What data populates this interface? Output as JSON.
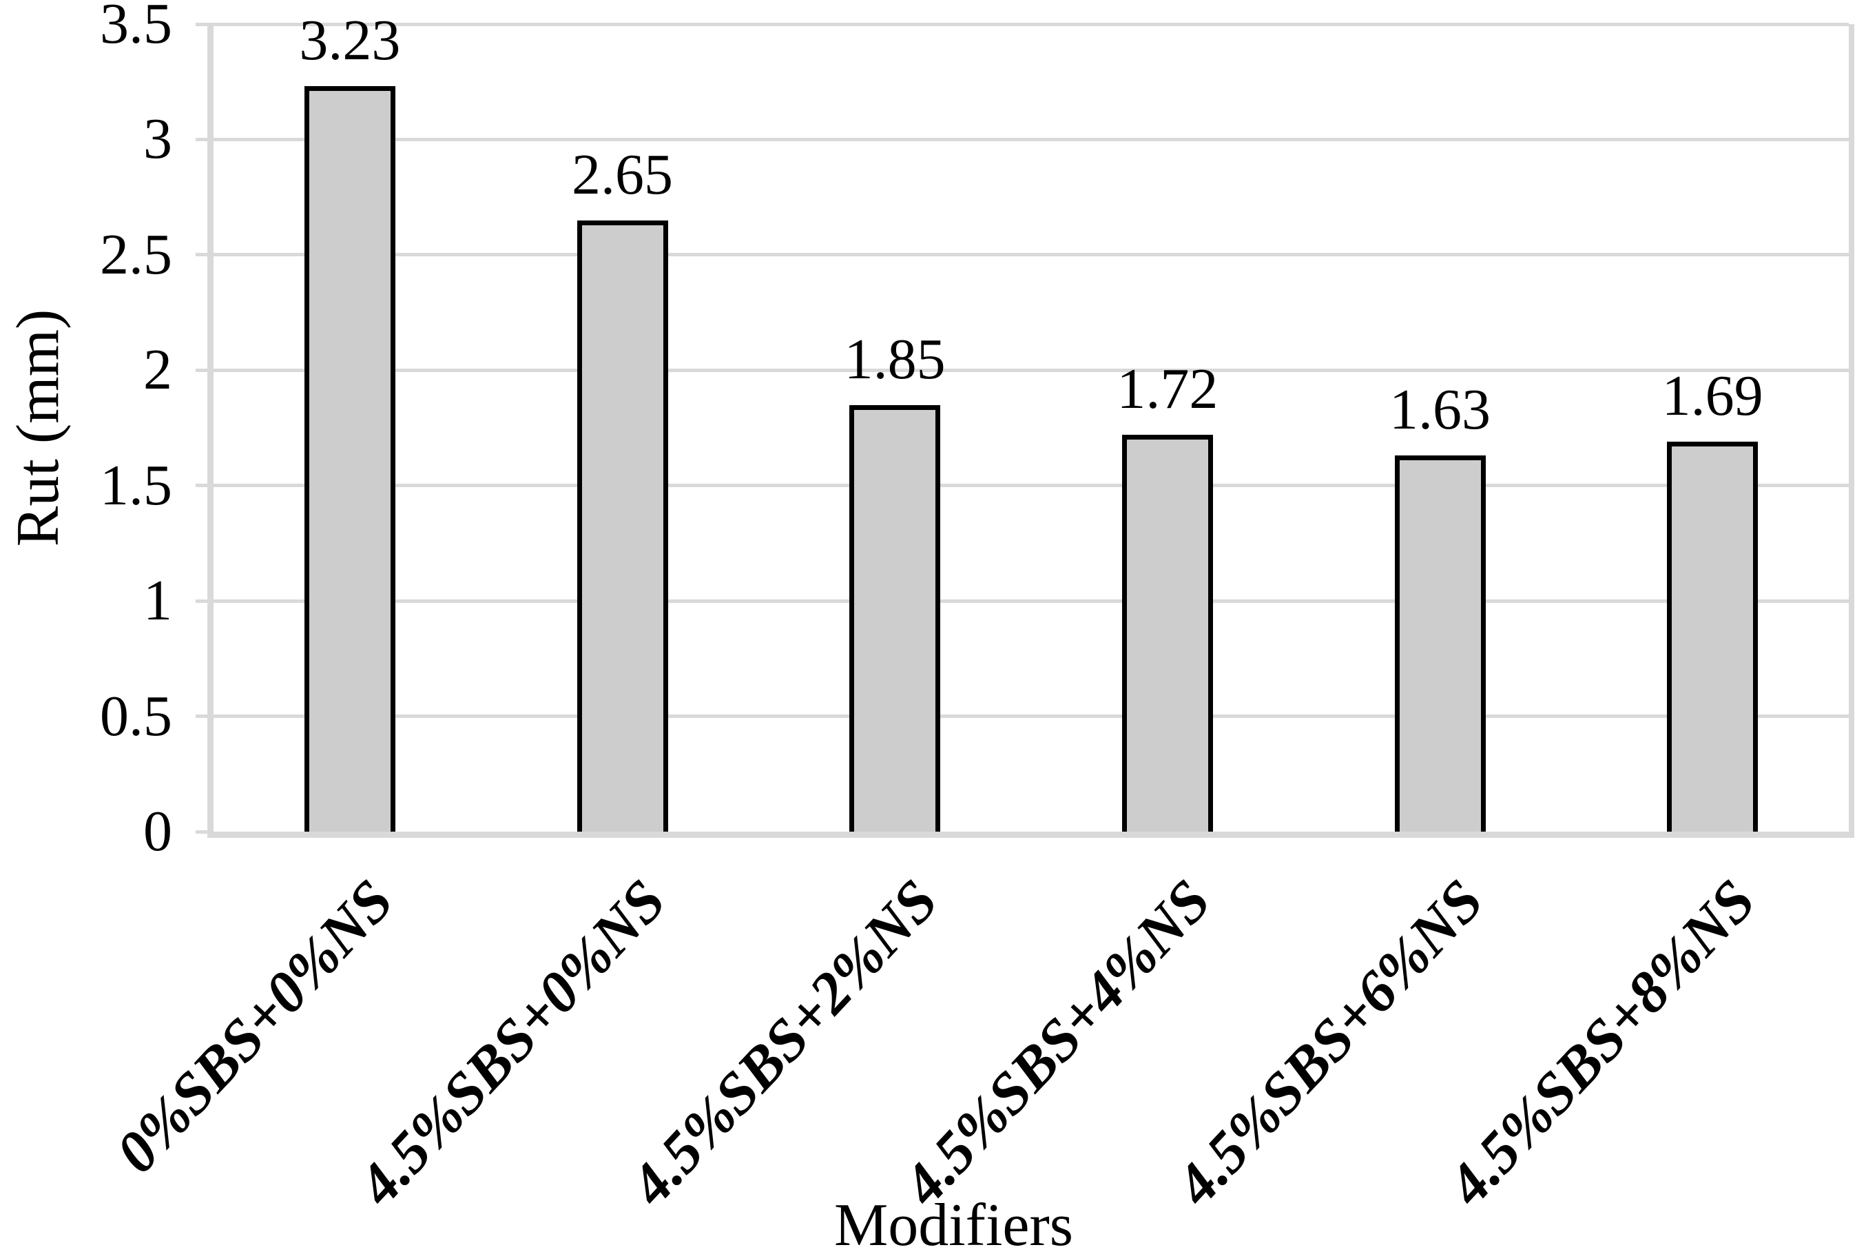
{
  "chart_data": {
    "type": "bar",
    "title": "",
    "xlabel": "Modifiers",
    "ylabel": "Rut (mm)",
    "categories": [
      "0%SBS+0%NS",
      "4.5%SBS+0%NS",
      "4.5%SBS+2%NS",
      "4.5%SBS+4%NS",
      "4.5%SBS+6%NS",
      "4.5%SBS+8%NS"
    ],
    "values": [
      3.23,
      2.65,
      1.85,
      1.72,
      1.63,
      1.69
    ],
    "value_labels": [
      "3.23",
      "2.65",
      "1.85",
      "1.72",
      "1.63",
      "1.69"
    ],
    "ylim": [
      0,
      3.5
    ],
    "yticks": [
      {
        "v": 0,
        "label": "0"
      },
      {
        "v": 0.5,
        "label": "0.5"
      },
      {
        "v": 1,
        "label": "1"
      },
      {
        "v": 1.5,
        "label": "1.5"
      },
      {
        "v": 2,
        "label": "2"
      },
      {
        "v": 2.5,
        "label": "2.5"
      },
      {
        "v": 3,
        "label": "3"
      },
      {
        "v": 3.5,
        "label": "3.5"
      }
    ],
    "grid": "horizontal",
    "legend": "none",
    "colors": {
      "bar_fill": "#cdcdcd",
      "bar_border": "#000000",
      "gridline": "#d9d9d9",
      "axis_line": "#d9d9d9",
      "text": "#000000",
      "background": "#ffffff"
    }
  }
}
